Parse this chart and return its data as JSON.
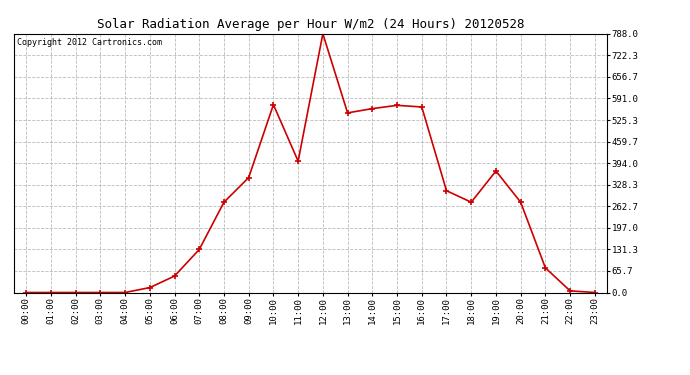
{
  "title": "Solar Radiation Average per Hour W/m2 (24 Hours) 20120528",
  "copyright": "Copyright 2012 Cartronics.com",
  "hours": [
    "00:00",
    "01:00",
    "02:00",
    "03:00",
    "04:00",
    "05:00",
    "06:00",
    "07:00",
    "08:00",
    "09:00",
    "10:00",
    "11:00",
    "12:00",
    "13:00",
    "14:00",
    "15:00",
    "16:00",
    "17:00",
    "18:00",
    "19:00",
    "20:00",
    "21:00",
    "22:00",
    "23:00"
  ],
  "values": [
    0.0,
    0.0,
    0.0,
    0.0,
    0.0,
    15.0,
    50.0,
    131.0,
    275.0,
    350.0,
    572.0,
    400.0,
    788.0,
    547.0,
    560.0,
    570.0,
    565.0,
    310.0,
    275.0,
    370.0,
    275.0,
    75.0,
    5.0,
    0.0
  ],
  "line_color": "#cc0000",
  "marker": "+",
  "marker_size": 4,
  "marker_linewidth": 1.2,
  "line_width": 1.2,
  "bg_color": "#ffffff",
  "plot_bg_color": "#ffffff",
  "grid_color": "#aaaaaa",
  "grid_linestyle": "--",
  "ymin": 0.0,
  "ymax": 788.0,
  "ytick_values": [
    0.0,
    65.7,
    131.3,
    197.0,
    262.7,
    328.3,
    394.0,
    459.7,
    525.3,
    591.0,
    656.7,
    722.3,
    788.0
  ],
  "title_fontsize": 9,
  "copyright_fontsize": 6,
  "tick_fontsize": 6.5
}
